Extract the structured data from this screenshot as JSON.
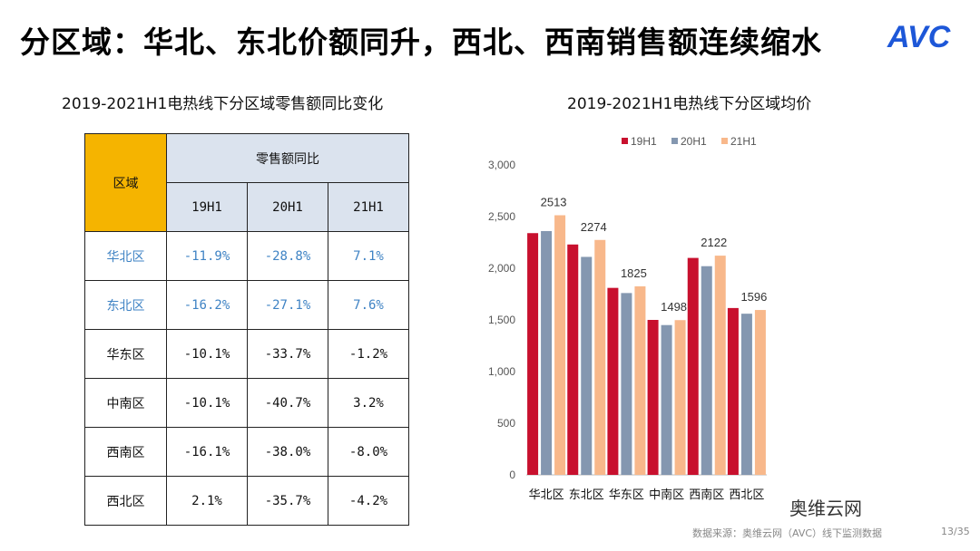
{
  "title": "分区域：华北、东北价额同升，西北、西南销售额连续缩水",
  "logo": "AVC",
  "left_subtitle": "2019-2021H1电热线下分区域零售额同比变化",
  "right_subtitle": "2019-2021H1电热线下分区域均价",
  "table": {
    "region_header": "区域",
    "group_header": "零售额同比",
    "columns": [
      "19H1",
      "20H1",
      "21H1"
    ],
    "rows": [
      {
        "region": "华北区",
        "values": [
          "-11.9%",
          "-28.8%",
          "7.1%"
        ]
      },
      {
        "region": "东北区",
        "values": [
          "-16.2%",
          "-27.1%",
          "7.6%"
        ]
      },
      {
        "region": "华东区",
        "values": [
          "-10.1%",
          "-33.7%",
          "-1.2%"
        ]
      },
      {
        "region": "中南区",
        "values": [
          "-10.1%",
          "-40.7%",
          "3.2%"
        ]
      },
      {
        "region": "西南区",
        "values": [
          "-16.1%",
          "-38.0%",
          "-8.0%"
        ]
      },
      {
        "region": "西北区",
        "values": [
          "2.1%",
          "-35.7%",
          "-4.2%"
        ]
      }
    ]
  },
  "chart_data": {
    "type": "bar",
    "title": "2019-2021H1电热线下分区域均价",
    "categories": [
      "华北区",
      "东北区",
      "华东区",
      "中南区",
      "西南区",
      "西北区"
    ],
    "series": [
      {
        "name": "19H1",
        "color": "#c8102e",
        "values": [
          2340,
          2230,
          1810,
          1500,
          2100,
          1615
        ]
      },
      {
        "name": "20H1",
        "color": "#8497b0",
        "values": [
          2360,
          2110,
          1760,
          1450,
          2020,
          1560
        ]
      },
      {
        "name": "21H1",
        "color": "#f8b88b",
        "values": [
          2513,
          2274,
          1825,
          1498,
          2122,
          1596
        ]
      }
    ],
    "data_labels": [
      "2513",
      "2274",
      "1825",
      "1498",
      "2122",
      "1596"
    ],
    "yticks": [
      "0",
      "500",
      "1,000",
      "1,500",
      "2,000",
      "2,500",
      "3,000"
    ],
    "ylim": [
      0,
      3000
    ],
    "legend": "top"
  },
  "footer": "数据来源：奥维云网（AVC）线下监测数据",
  "page": "13/35",
  "watermark": "奥维云网"
}
